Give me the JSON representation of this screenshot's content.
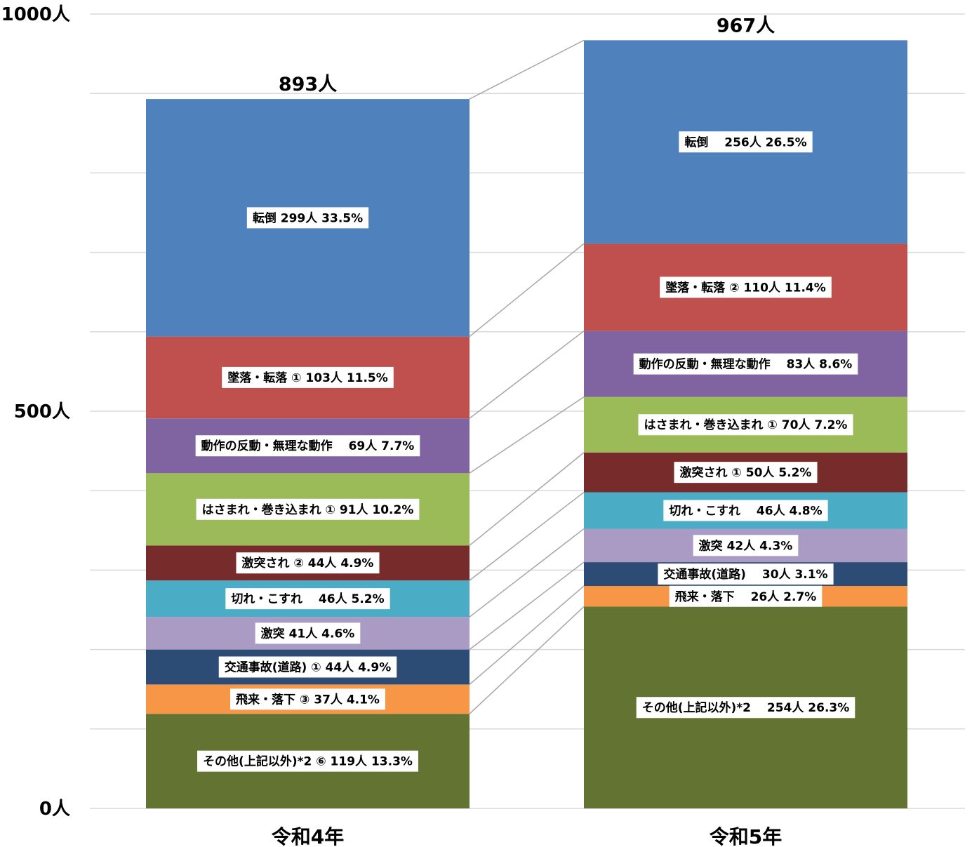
{
  "chart_data": {
    "type": "bar",
    "stacked": true,
    "yunit": "人",
    "ylim": [
      0,
      1000
    ],
    "ytick_labels": [
      "0人",
      "500人",
      "1000人"
    ],
    "grid": true,
    "categories": [
      "令和4年",
      "令和5年"
    ],
    "totals": [
      "893人",
      "967人"
    ],
    "total_values": [
      893,
      967
    ],
    "series": [
      {
        "name": "その他(上記以外)*2",
        "color": "#637432",
        "values": [
          119,
          254
        ],
        "labels": [
          "その他(上記以外)*2 ⑥ 119人 13.3%",
          "その他(上記以外)*2　 254人 26.3%"
        ]
      },
      {
        "name": "飛来・落下",
        "color": "#f79646",
        "values": [
          37,
          26
        ],
        "labels": [
          "飛来・落下 ③ 37人 4.1%",
          "飛来・落下　 26人 2.7%"
        ]
      },
      {
        "name": "交通事故(道路)",
        "color": "#2d4c75",
        "values": [
          44,
          30
        ],
        "labels": [
          "交通事故(道路) ① 44人 4.9%",
          "交通事故(道路)　 30人 3.1%"
        ]
      },
      {
        "name": "激突",
        "color": "#a99bc3",
        "values": [
          41,
          42
        ],
        "labels": [
          "激突 41人 4.6%",
          "激突 42人 4.3%"
        ]
      },
      {
        "name": "切れ・こすれ",
        "color": "#4aacc5",
        "values": [
          46,
          46
        ],
        "labels": [
          "切れ・こすれ　 46人 5.2%",
          "切れ・こすれ　 46人 4.8%"
        ]
      },
      {
        "name": "激突され",
        "color": "#772b2a",
        "values": [
          44,
          50
        ],
        "labels": [
          "激突され ② 44人 4.9%",
          "激突され ① 50人 5.2%"
        ]
      },
      {
        "name": "はさまれ・巻き込まれ",
        "color": "#9bbb59",
        "values": [
          91,
          70
        ],
        "labels": [
          "はさまれ・巻き込まれ ① 91人 10.2%",
          "はさまれ・巻き込まれ ① 70人 7.2%"
        ]
      },
      {
        "name": "動作の反動・無理な動作",
        "color": "#8064a2",
        "values": [
          69,
          83
        ],
        "labels": [
          "動作の反動・無理な動作　 69人 7.7%",
          "動作の反動・無理な動作　 83人 8.6%"
        ]
      },
      {
        "name": "墜落・転落",
        "color": "#c0504d",
        "values": [
          103,
          110
        ],
        "labels": [
          "墜落・転落 ① 103人 11.5%",
          "墜落・転落 ② 110人 11.4%"
        ]
      },
      {
        "name": "転倒",
        "color": "#4f81bd",
        "values": [
          299,
          256
        ],
        "labels": [
          "転倒 299人 33.5%",
          "転倒　 256人 26.5%"
        ]
      }
    ]
  }
}
